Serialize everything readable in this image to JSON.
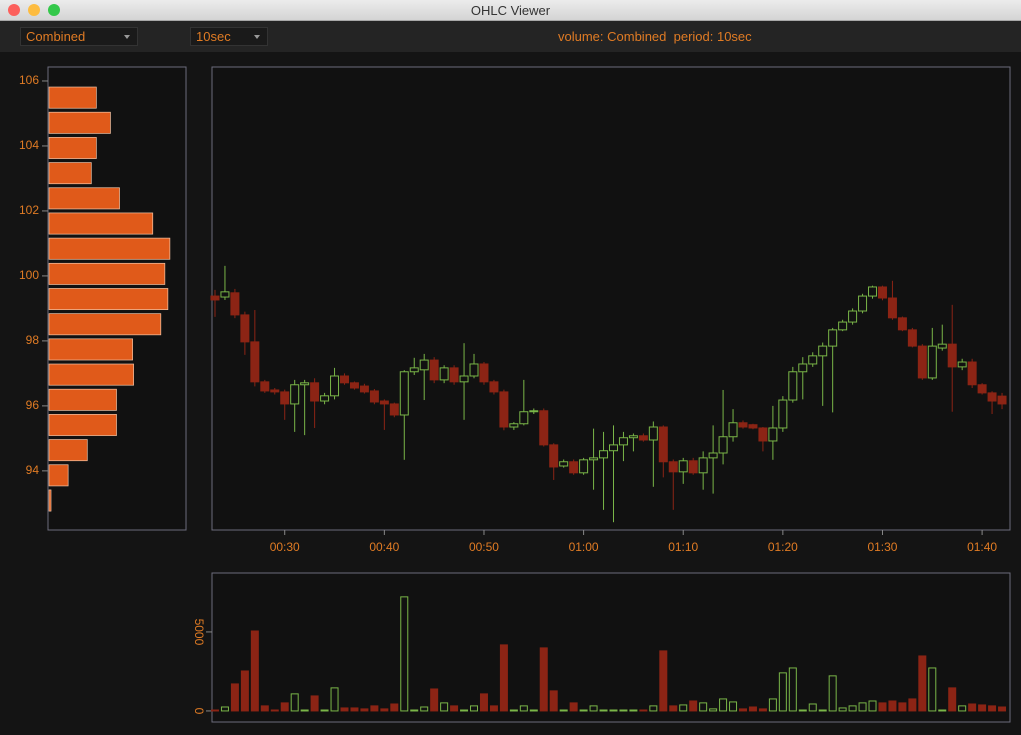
{
  "window": {
    "title": "OHLC Viewer"
  },
  "toolbar": {
    "volume_select": "Combined",
    "period_select": "10sec",
    "status": "volume: Combined  period: 10sec"
  },
  "chart_data": [
    {
      "type": "histogram",
      "orientation": "horizontal",
      "color": "#e05a1a",
      "edge_color": "#f2c4a6",
      "bins": [
        92.7,
        93.475,
        94.25,
        95.025,
        95.8,
        96.575,
        97.35,
        98.125,
        98.9,
        99.675,
        100.45,
        101.225,
        102.0,
        102.775,
        103.55,
        104.325,
        105.1,
        105.875
      ],
      "values": [
        2,
        19,
        38,
        67,
        67,
        84,
        83,
        111,
        118,
        115,
        120,
        103,
        70,
        42,
        47,
        61,
        47
      ],
      "xlim": [
        0,
        137
      ],
      "ylim": [
        92.18,
        106.43
      ],
      "yticks": [
        94,
        96,
        98,
        100,
        102,
        104,
        106
      ]
    },
    {
      "type": "candlestick",
      "up_color": "#7ab648",
      "down_color": "#8c2415",
      "x": [
        23,
        24,
        25,
        26,
        27,
        28,
        29,
        30,
        31,
        32,
        33,
        34,
        35,
        36,
        37,
        38,
        39,
        40,
        41,
        42,
        43,
        44,
        45,
        46,
        47,
        48,
        49,
        50,
        51,
        52,
        53,
        54,
        55,
        56,
        57,
        58,
        59,
        60,
        61,
        62,
        63,
        64,
        65,
        66,
        67,
        68,
        69,
        70,
        71,
        72,
        73,
        74,
        75,
        76,
        77,
        78,
        79,
        80,
        81,
        82,
        83,
        84,
        85,
        86,
        87,
        88,
        89,
        90,
        91,
        92,
        93,
        94,
        95,
        96,
        97,
        98,
        99,
        100,
        101,
        102
      ],
      "open": [
        99.38,
        99.35,
        99.48,
        98.8,
        97.97,
        96.74,
        96.49,
        96.43,
        96.06,
        96.65,
        96.71,
        96.15,
        96.31,
        96.92,
        96.71,
        96.61,
        96.46,
        96.15,
        96.06,
        95.72,
        97.05,
        97.11,
        97.41,
        96.8,
        97.17,
        96.74,
        96.92,
        97.29,
        96.74,
        96.43,
        95.35,
        95.45,
        95.82,
        95.85,
        94.8,
        94.15,
        94.28,
        93.94,
        94.34,
        94.4,
        94.62,
        94.8,
        95.02,
        95.08,
        94.95,
        95.35,
        94.28,
        93.97,
        94.31,
        93.94,
        94.4,
        94.55,
        95.05,
        95.48,
        95.42,
        95.32,
        94.92,
        95.32,
        96.18,
        97.05,
        97.29,
        97.54,
        97.84,
        98.34,
        98.58,
        98.92,
        99.38,
        99.66,
        99.32,
        98.71,
        98.34,
        97.84,
        96.86,
        97.78,
        97.9,
        97.2,
        97.35,
        96.65,
        96.4,
        96.3
      ],
      "high": [
        99.57,
        100.31,
        99.6,
        98.9,
        98.95,
        96.8,
        96.55,
        96.5,
        96.8,
        96.8,
        96.85,
        96.4,
        97.17,
        97.0,
        96.75,
        96.68,
        96.52,
        96.2,
        96.1,
        97.1,
        97.48,
        97.6,
        97.5,
        97.25,
        97.25,
        97.93,
        97.6,
        97.35,
        96.8,
        96.5,
        95.5,
        96.8,
        95.92,
        95.92,
        94.85,
        94.35,
        94.35,
        94.4,
        95.3,
        95.2,
        95.4,
        95.2,
        95.15,
        95.15,
        95.52,
        95.4,
        94.35,
        94.4,
        94.4,
        94.6,
        95.4,
        96.49,
        95.9,
        95.55,
        95.45,
        95.35,
        96.0,
        96.3,
        97.2,
        97.5,
        97.65,
        97.95,
        98.4,
        98.65,
        99.0,
        99.45,
        99.7,
        99.7,
        99.85,
        98.75,
        98.4,
        97.9,
        98.4,
        98.5,
        99.11,
        97.45,
        97.45,
        96.7,
        96.45,
        96.4
      ],
      "low": [
        98.74,
        99.26,
        98.7,
        97.57,
        96.6,
        96.4,
        96.35,
        95.57,
        95.2,
        95.1,
        95.32,
        96.05,
        96.2,
        96.65,
        96.5,
        96.38,
        96.05,
        95.26,
        95.65,
        94.34,
        96.95,
        96.18,
        96.7,
        96.7,
        96.65,
        95.57,
        96.85,
        96.65,
        96.35,
        95.25,
        95.26,
        95.4,
        95.75,
        94.75,
        93.72,
        94.1,
        93.88,
        93.88,
        93.42,
        92.8,
        92.42,
        94.3,
        94.6,
        94.9,
        93.51,
        93.8,
        92.8,
        93.6,
        93.88,
        93.42,
        93.3,
        94.2,
        94.9,
        95.3,
        95.28,
        94.6,
        94.34,
        95.2,
        96.1,
        96.2,
        97.2,
        96.0,
        95.8,
        98.3,
        98.5,
        98.85,
        99.3,
        99.25,
        98.65,
        98.3,
        97.8,
        96.8,
        96.8,
        97.7,
        95.82,
        97.1,
        96.55,
        96.35,
        95.75,
        95.9
      ],
      "close": [
        99.26,
        99.51,
        98.8,
        97.97,
        96.74,
        96.46,
        96.43,
        96.06,
        96.65,
        96.71,
        96.15,
        96.31,
        96.92,
        96.71,
        96.55,
        96.43,
        96.12,
        96.06,
        95.72,
        97.05,
        97.17,
        97.41,
        96.8,
        97.17,
        96.74,
        96.92,
        97.29,
        96.74,
        96.43,
        95.35,
        95.45,
        95.82,
        95.85,
        94.8,
        94.12,
        94.28,
        93.94,
        94.34,
        94.4,
        94.62,
        94.8,
        95.02,
        95.08,
        94.95,
        95.35,
        94.28,
        93.97,
        94.31,
        93.94,
        94.4,
        94.55,
        95.05,
        95.48,
        95.35,
        95.32,
        94.92,
        95.32,
        96.18,
        97.05,
        97.29,
        97.54,
        97.84,
        98.34,
        98.58,
        98.92,
        99.38,
        99.66,
        99.32,
        98.71,
        98.34,
        97.84,
        96.86,
        97.84,
        97.9,
        97.2,
        97.35,
        96.65,
        96.4,
        96.15,
        96.06
      ],
      "xlim": [
        22.7,
        102.8
      ],
      "ylim": [
        92.18,
        106.43
      ],
      "xticks": [
        {
          "value": 30,
          "label": "00:30"
        },
        {
          "value": 40,
          "label": "00:40"
        },
        {
          "value": 50,
          "label": "00:50"
        },
        {
          "value": 60,
          "label": "01:00"
        },
        {
          "value": 70,
          "label": "01:10"
        },
        {
          "value": 80,
          "label": "01:20"
        },
        {
          "value": 90,
          "label": "01:30"
        },
        {
          "value": 100,
          "label": "01:40"
        }
      ]
    },
    {
      "type": "bar",
      "up_color": "#7ab648",
      "down_color": "#8c2415",
      "x": [
        23,
        24,
        25,
        26,
        27,
        28,
        29,
        30,
        31,
        32,
        33,
        34,
        35,
        36,
        37,
        38,
        39,
        40,
        41,
        42,
        43,
        44,
        45,
        46,
        47,
        48,
        49,
        50,
        51,
        52,
        53,
        54,
        55,
        56,
        57,
        58,
        59,
        60,
        61,
        62,
        63,
        64,
        65,
        66,
        67,
        68,
        69,
        70,
        71,
        72,
        73,
        74,
        75,
        76,
        77,
        78,
        79,
        80,
        81,
        82,
        83,
        84,
        85,
        86,
        87,
        88,
        89,
        90,
        91,
        92,
        93,
        94,
        95,
        96,
        97,
        98,
        99,
        100,
        101,
        102
      ],
      "values": [
        60,
        250,
        1710,
        2530,
        5060,
        320,
        60,
        510,
        1080,
        60,
        950,
        60,
        1460,
        190,
        190,
        130,
        320,
        130,
        440,
        7220,
        60,
        250,
        1390,
        510,
        320,
        60,
        320,
        1080,
        320,
        4180,
        60,
        320,
        60,
        3990,
        1270,
        60,
        510,
        60,
        320,
        60,
        60,
        60,
        60,
        60,
        320,
        3800,
        320,
        380,
        630,
        510,
        130,
        760,
        570,
        130,
        250,
        130,
        760,
        2410,
        2720,
        60,
        440,
        60,
        2220,
        190,
        320,
        510,
        630,
        510,
        630,
        510,
        760,
        3480,
        2720,
        60,
        1460,
        320,
        440,
        380,
        320,
        250
      ],
      "xlim": [
        22.7,
        102.8
      ],
      "ylim": [
        -700,
        8730
      ],
      "yticks": [
        0,
        5000
      ]
    }
  ]
}
